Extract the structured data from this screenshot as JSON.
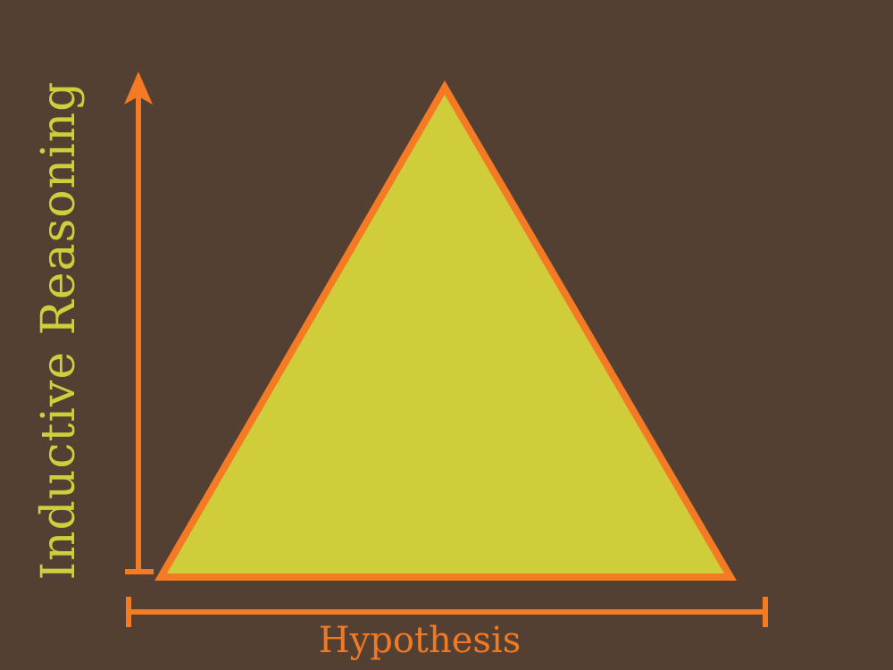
{
  "diagram": {
    "y_axis_label": "Inductive Reasoning",
    "x_axis_label": "Hypothesis"
  },
  "colors": {
    "background": "#543f33",
    "triangle_fill": "#d0cd3b",
    "accent_orange": "#f47a24",
    "y_label_color": "#cfce3c",
    "x_label_color": "#f07a24"
  }
}
